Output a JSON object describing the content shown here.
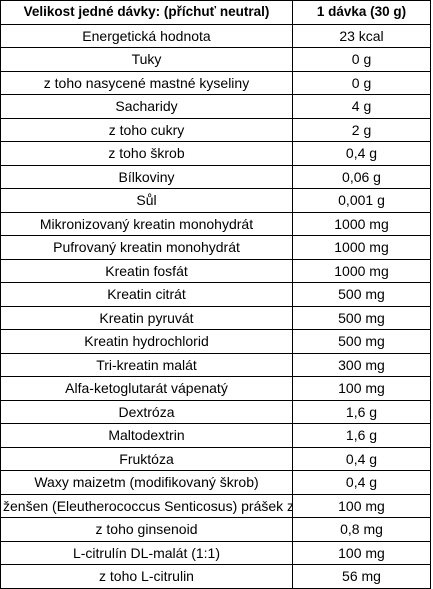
{
  "table": {
    "header": {
      "col1": "Velikost jedné dávky: (příchuť neutral)",
      "col2": "1 dávka (30 g)"
    },
    "rows": [
      {
        "label": "Energetická hodnota",
        "value": "23 kcal"
      },
      {
        "label": "Tuky",
        "value": "0 g"
      },
      {
        "label": "z toho nasycené mastné kyseliny",
        "value": "0 g"
      },
      {
        "label": "Sacharidy",
        "value": "4 g"
      },
      {
        "label": "z toho cukry",
        "value": "2 g"
      },
      {
        "label": "z toho škrob",
        "value": "0,4 g"
      },
      {
        "label": "Bílkoviny",
        "value": "0,06 g"
      },
      {
        "label": "Sůl",
        "value": "0,001 g"
      },
      {
        "label": "Mikronizovaný kreatin monohydrát",
        "value": "1000 mg"
      },
      {
        "label": "Pufrovaný kreatin monohydrát",
        "value": "1000 mg"
      },
      {
        "label": "Kreatin fosfát",
        "value": "1000 mg"
      },
      {
        "label": "Kreatin citrát",
        "value": "500 mg"
      },
      {
        "label": "Kreatin pyruvát",
        "value": "500 mg"
      },
      {
        "label": "Kreatin hydrochlorid",
        "value": "500 mg"
      },
      {
        "label": "Tri-kreatin malát",
        "value": "300 mg"
      },
      {
        "label": "Alfa-ketoglutarát vápenatý",
        "value": "100 mg"
      },
      {
        "label": "Dextróza",
        "value": "1,6 g"
      },
      {
        "label": "Maltodextrin",
        "value": "1,6 g"
      },
      {
        "label": "Fruktóza",
        "value": "0,4 g"
      },
      {
        "label": "Waxy maizetm (modifikovaný škrob)",
        "value": "0,4 g"
      },
      {
        "label": "ženšen (Eleutherococcus Senticosus) prášek z",
        "value": "100 mg"
      },
      {
        "label": "z toho ginsenoid",
        "value": "0,8 mg"
      },
      {
        "label": "L-citrulín DL-malát (1:1)",
        "value": "100 mg"
      },
      {
        "label": "z toho L-citrulin",
        "value": "56 mg"
      }
    ]
  }
}
